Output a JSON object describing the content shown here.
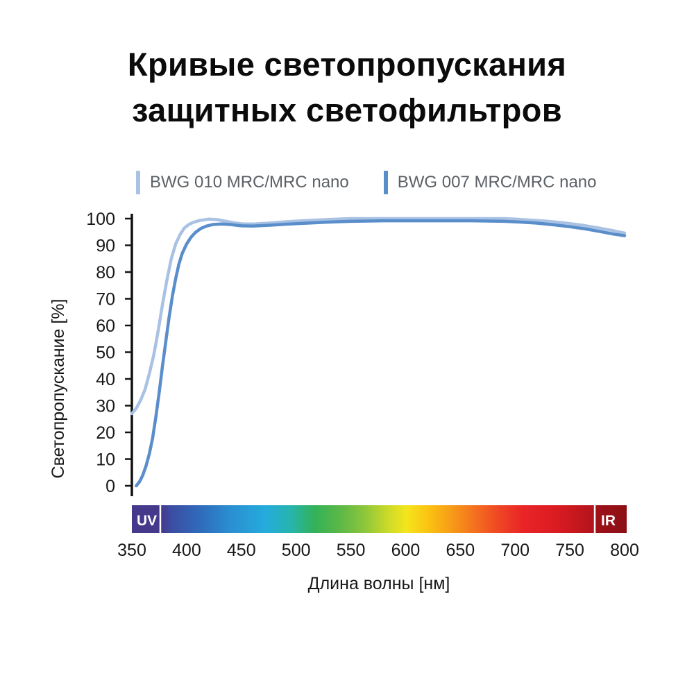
{
  "title": {
    "line1": "Кривые светопропускания",
    "line2": "защитных светофильтров"
  },
  "legend": [
    {
      "label": "BWG 010 MRC/MRC nano",
      "color": "#a9c2e4"
    },
    {
      "label": "BWG 007 MRC/MRC nano",
      "color": "#5a8ecb"
    }
  ],
  "chart_data": {
    "type": "line",
    "title": "Кривые светопропускания защитных светофильтров",
    "xlabel": "Длина волны [нм]",
    "ylabel": "Светопропускание [%]",
    "xlim": [
      350,
      800
    ],
    "ylim": [
      0,
      100
    ],
    "x_ticks": [
      350,
      400,
      450,
      500,
      550,
      600,
      650,
      700,
      750,
      800
    ],
    "y_ticks": [
      0,
      10,
      20,
      30,
      40,
      50,
      60,
      70,
      80,
      90,
      100
    ],
    "grid": false,
    "legend_position": "top",
    "series": [
      {
        "name": "BWG 010 MRC/MRC nano",
        "color": "#a9c2e4",
        "points": [
          [
            350,
            27
          ],
          [
            354,
            29
          ],
          [
            358,
            32
          ],
          [
            362,
            36
          ],
          [
            366,
            42
          ],
          [
            370,
            49
          ],
          [
            374,
            58
          ],
          [
            378,
            68
          ],
          [
            382,
            77
          ],
          [
            386,
            85
          ],
          [
            390,
            90.5
          ],
          [
            394,
            94
          ],
          [
            398,
            96.5
          ],
          [
            402,
            97.8
          ],
          [
            406,
            98.6
          ],
          [
            412,
            99.3
          ],
          [
            420,
            99.8
          ],
          [
            428,
            99.6
          ],
          [
            436,
            99
          ],
          [
            444,
            98.4
          ],
          [
            452,
            98
          ],
          [
            462,
            98
          ],
          [
            475,
            98.3
          ],
          [
            490,
            98.8
          ],
          [
            510,
            99.3
          ],
          [
            530,
            99.7
          ],
          [
            550,
            100
          ],
          [
            580,
            100
          ],
          [
            610,
            100
          ],
          [
            640,
            100
          ],
          [
            670,
            100
          ],
          [
            690,
            100
          ],
          [
            700,
            99.8
          ],
          [
            715,
            99.4
          ],
          [
            730,
            99
          ],
          [
            745,
            98.4
          ],
          [
            760,
            97.6
          ],
          [
            775,
            96.6
          ],
          [
            788,
            95.6
          ],
          [
            800,
            94.6
          ]
        ]
      },
      {
        "name": "BWG 007 MRC/MRC nano",
        "color": "#5a8ecb",
        "points": [
          [
            354,
            0
          ],
          [
            357,
            1.5
          ],
          [
            360,
            4
          ],
          [
            363,
            7.5
          ],
          [
            366,
            12
          ],
          [
            369,
            18
          ],
          [
            372,
            26
          ],
          [
            375,
            35
          ],
          [
            378,
            45
          ],
          [
            381,
            54
          ],
          [
            384,
            63
          ],
          [
            387,
            71
          ],
          [
            390,
            77.5
          ],
          [
            393,
            83
          ],
          [
            396,
            87
          ],
          [
            400,
            90.5
          ],
          [
            404,
            93
          ],
          [
            408,
            94.8
          ],
          [
            413,
            96.3
          ],
          [
            418,
            97.2
          ],
          [
            424,
            97.8
          ],
          [
            432,
            98
          ],
          [
            440,
            97.8
          ],
          [
            450,
            97.3
          ],
          [
            460,
            97.2
          ],
          [
            475,
            97.5
          ],
          [
            490,
            97.9
          ],
          [
            510,
            98.3
          ],
          [
            530,
            98.7
          ],
          [
            550,
            99
          ],
          [
            580,
            99.2
          ],
          [
            600,
            99.2
          ],
          [
            630,
            99.2
          ],
          [
            660,
            99.2
          ],
          [
            690,
            99
          ],
          [
            705,
            98.7
          ],
          [
            720,
            98.3
          ],
          [
            735,
            97.7
          ],
          [
            750,
            97
          ],
          [
            765,
            96.1
          ],
          [
            780,
            95
          ],
          [
            790,
            94.2
          ],
          [
            800,
            93.6
          ]
        ]
      }
    ],
    "spectrum_bar": {
      "uv_label": "UV",
      "ir_label": "IR",
      "stops": [
        [
          0,
          "#45398c"
        ],
        [
          0.057,
          "#45398c"
        ],
        [
          0.08,
          "#3c4da2"
        ],
        [
          0.14,
          "#2f6cbc"
        ],
        [
          0.2,
          "#2b8fd1"
        ],
        [
          0.27,
          "#25abdc"
        ],
        [
          0.32,
          "#27b4ae"
        ],
        [
          0.37,
          "#33b257"
        ],
        [
          0.42,
          "#5bb847"
        ],
        [
          0.47,
          "#8cc63b"
        ],
        [
          0.52,
          "#cfdb28"
        ],
        [
          0.555,
          "#f4e51c"
        ],
        [
          0.6,
          "#fbc212"
        ],
        [
          0.645,
          "#f79c17"
        ],
        [
          0.69,
          "#f4731f"
        ],
        [
          0.74,
          "#ef4723"
        ],
        [
          0.79,
          "#e92527"
        ],
        [
          0.86,
          "#da1b22"
        ],
        [
          0.93,
          "#b4141b"
        ],
        [
          0.936,
          "#a01118"
        ],
        [
          1,
          "#8a0f15"
        ]
      ]
    }
  }
}
